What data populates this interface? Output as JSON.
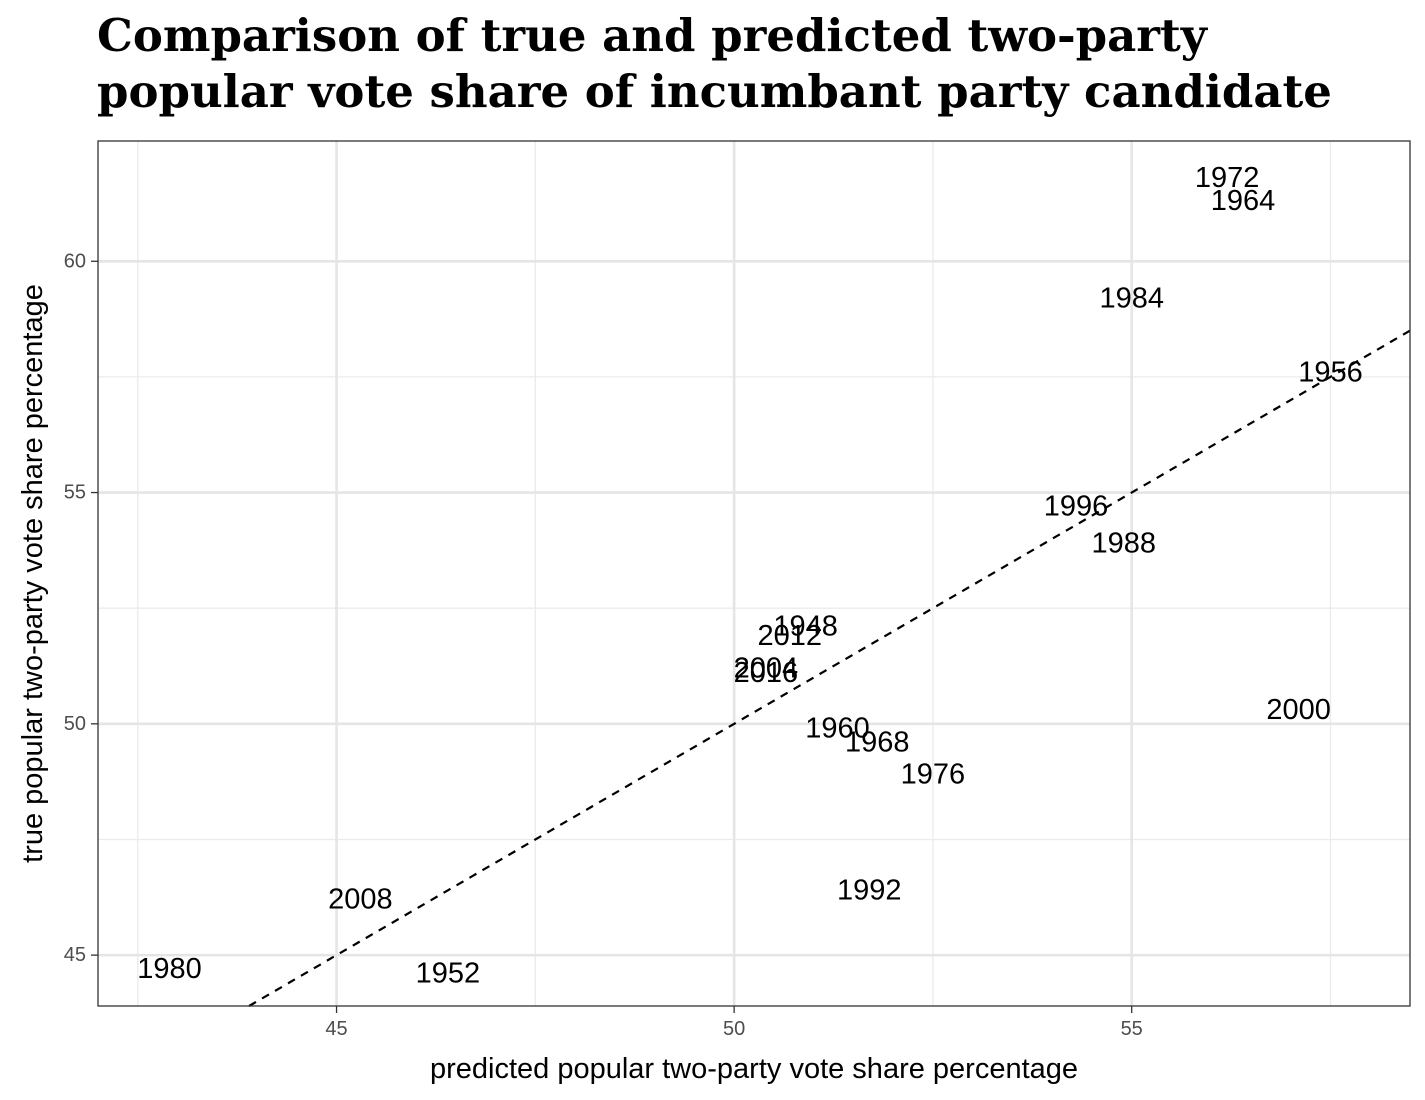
{
  "chart_data": {
    "type": "scatter",
    "title_lines": [
      "Comparison of true and predicted two-party",
      "popular vote share of incumbant party candidate"
    ],
    "xlabel": "predicted popular two-party vote share percentage",
    "ylabel": "true popular two-party vote share percentage",
    "xlim": [
      42,
      58.5
    ],
    "ylim": [
      43.9,
      62.6
    ],
    "x_ticks": [
      45,
      50,
      55
    ],
    "x_minor_ticks": [
      42.5,
      47.5,
      52.5,
      57.5
    ],
    "y_ticks": [
      45,
      50,
      55,
      60
    ],
    "y_minor_ticks": [
      47.5,
      52.5,
      57.5
    ],
    "grid": true,
    "reference_line": {
      "slope": 1,
      "intercept": 0,
      "style": "dashed"
    },
    "points": [
      {
        "label": "1948",
        "x": 50.9,
        "y": 52.1
      },
      {
        "label": "1952",
        "x": 46.4,
        "y": 44.6
      },
      {
        "label": "1956",
        "x": 57.5,
        "y": 57.6
      },
      {
        "label": "1960",
        "x": 51.3,
        "y": 49.9
      },
      {
        "label": "1964",
        "x": 56.4,
        "y": 61.3
      },
      {
        "label": "1968",
        "x": 51.8,
        "y": 49.6
      },
      {
        "label": "1972",
        "x": 56.2,
        "y": 61.8
      },
      {
        "label": "1976",
        "x": 52.5,
        "y": 48.9
      },
      {
        "label": "1980",
        "x": 42.9,
        "y": 44.7
      },
      {
        "label": "1984",
        "x": 55.0,
        "y": 59.2
      },
      {
        "label": "1988",
        "x": 54.9,
        "y": 53.9
      },
      {
        "label": "1992",
        "x": 51.7,
        "y": 46.4
      },
      {
        "label": "1996",
        "x": 54.3,
        "y": 54.7
      },
      {
        "label": "2000",
        "x": 57.1,
        "y": 50.3
      },
      {
        "label": "2004",
        "x": 50.4,
        "y": 51.2
      },
      {
        "label": "2008",
        "x": 45.3,
        "y": 46.2
      },
      {
        "label": "2012",
        "x": 50.7,
        "y": 51.9
      },
      {
        "label": "2016",
        "x": 50.4,
        "y": 51.1
      }
    ]
  }
}
